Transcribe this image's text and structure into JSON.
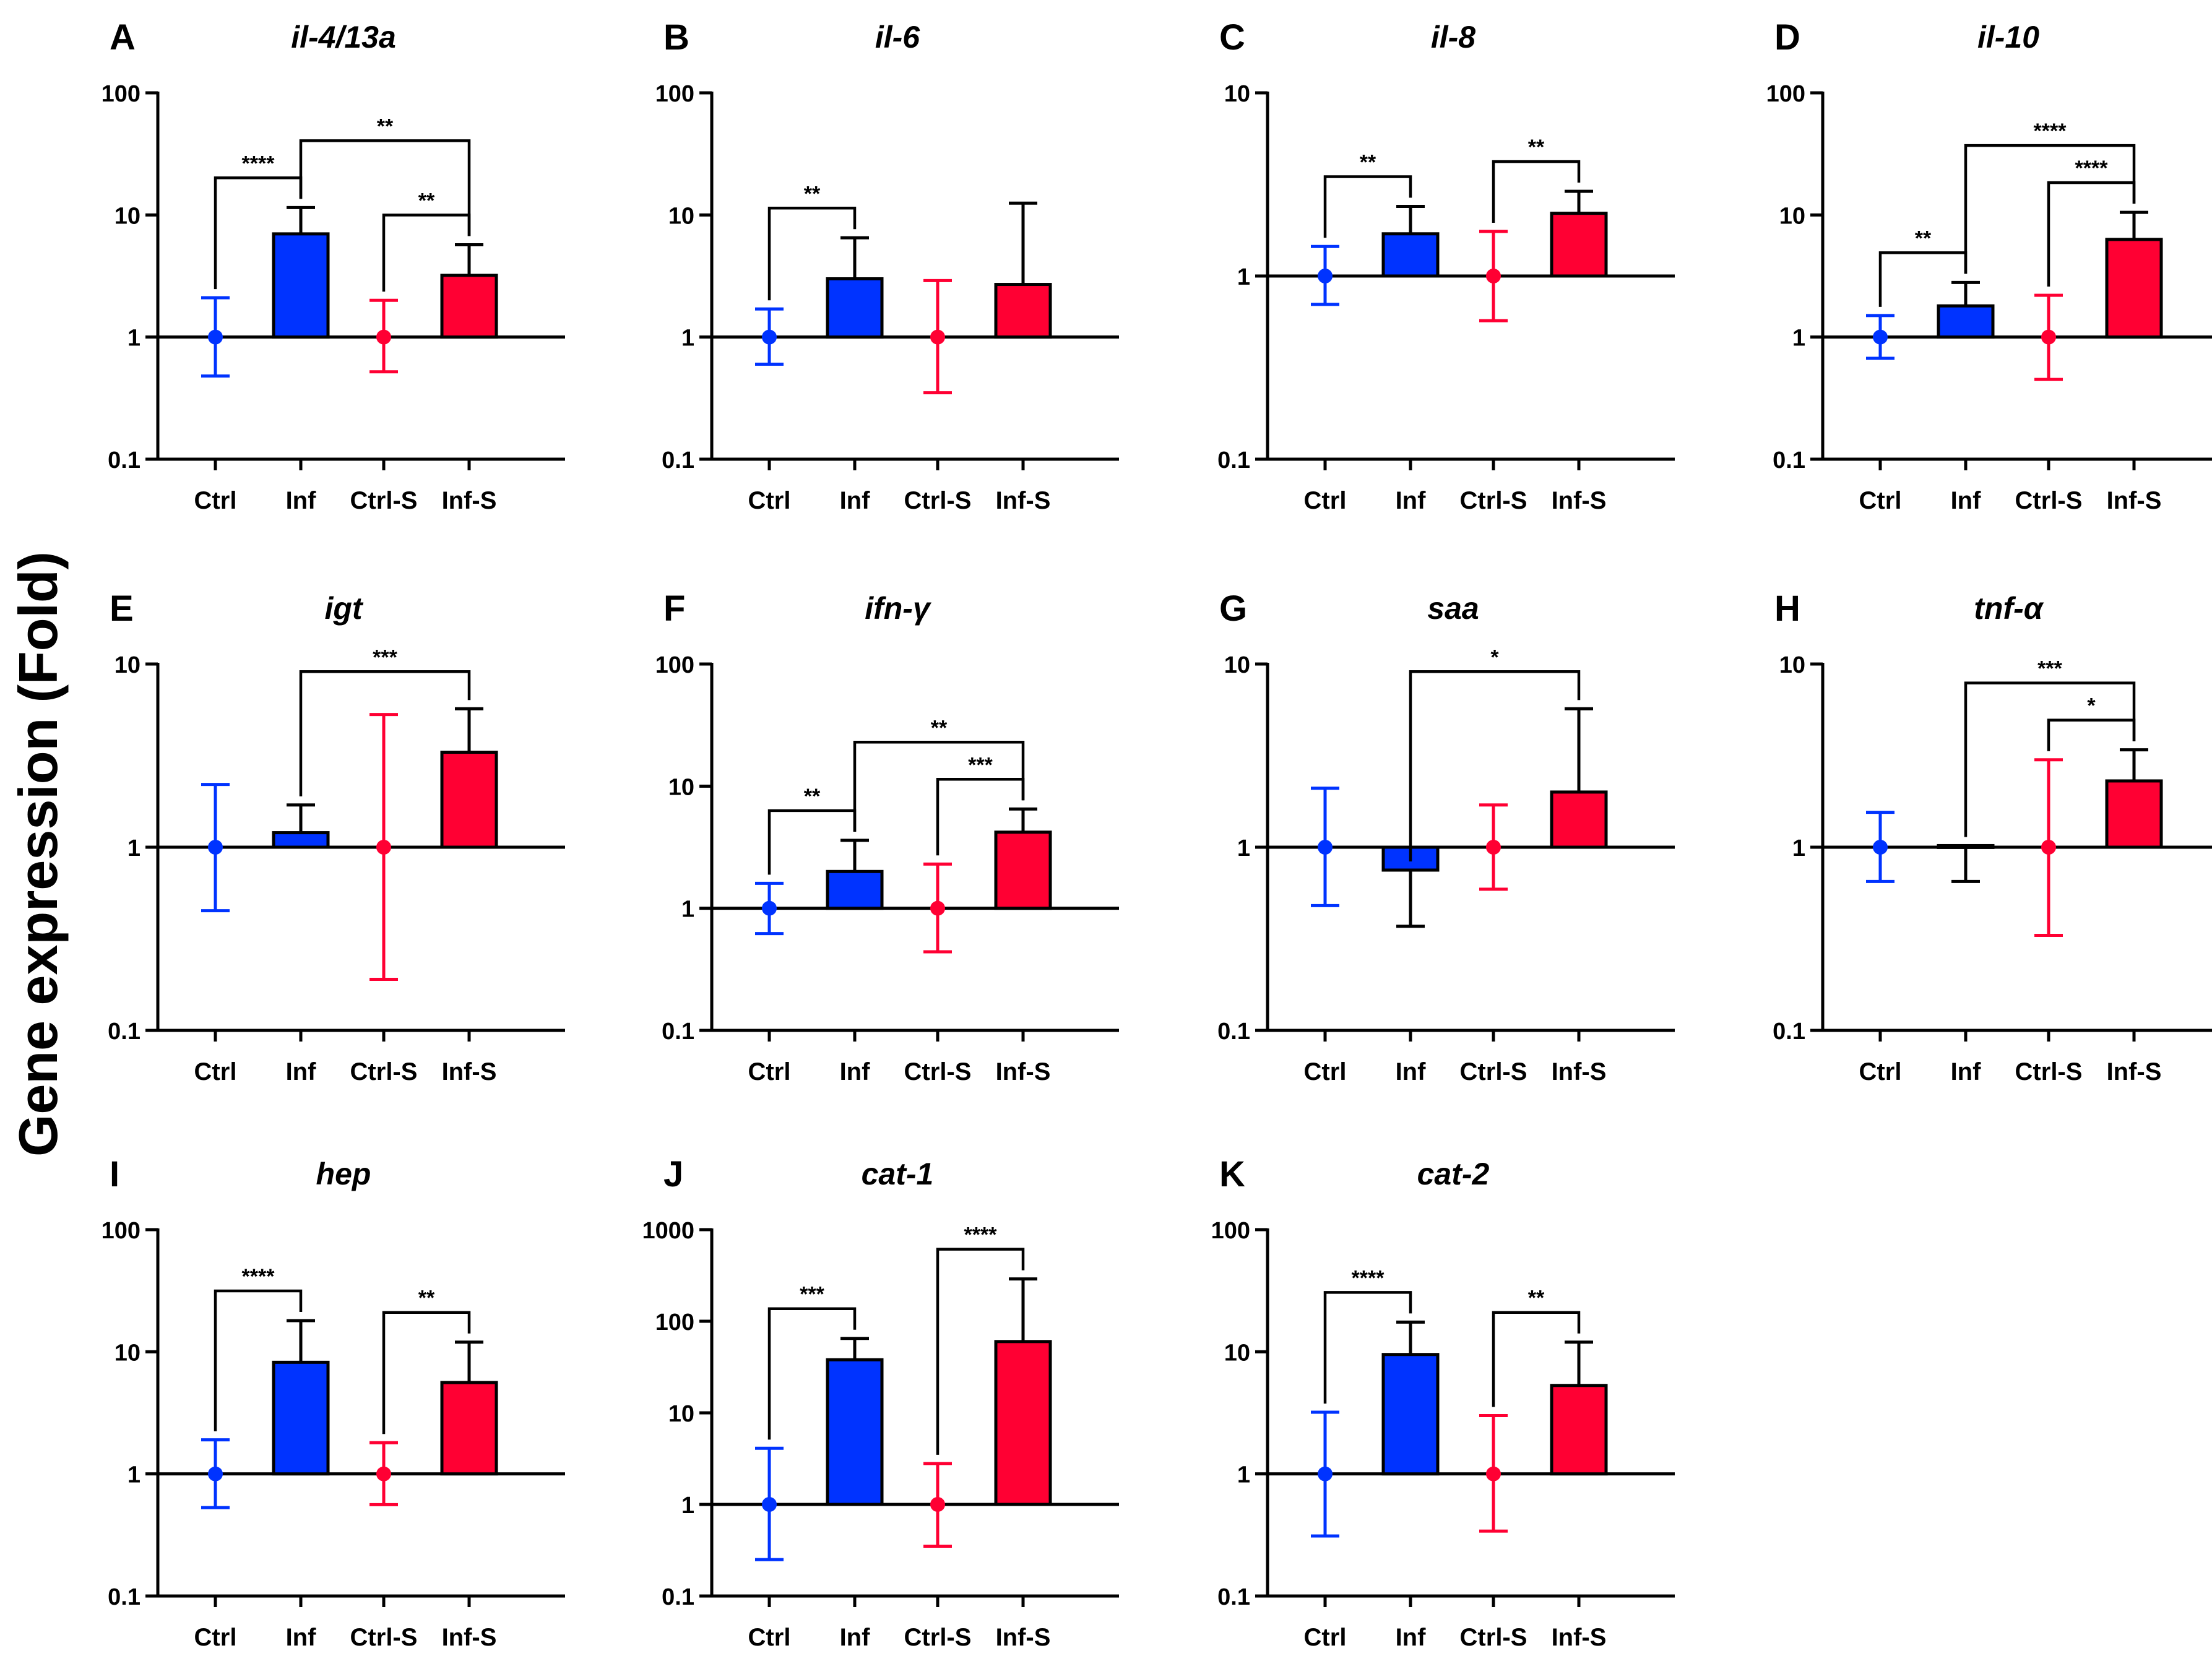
{
  "figure": {
    "ylabel": "Gene expression (Fold)",
    "categories": [
      "Ctrl",
      "Inf",
      "Ctrl-S",
      "Inf-S"
    ],
    "colors": {
      "infected": "#0033ff",
      "salmonella": "#ff0033",
      "axis": "#000000"
    }
  },
  "chart_data": [
    {
      "panel": "A",
      "title": "il-4/13a",
      "type": "bar",
      "scale": "log",
      "ylim": [
        0.1,
        100
      ],
      "yticks": [
        "0.1",
        "1",
        "10",
        "100"
      ],
      "categories": [
        "Ctrl",
        "Inf",
        "Ctrl-S",
        "Inf-S"
      ],
      "values": [
        1,
        7,
        1,
        3.2
      ],
      "err_low": [
        0.48,
        null,
        0.52,
        null
      ],
      "err_high": [
        2.1,
        11.5,
        2.0,
        5.7
      ],
      "sig": [
        {
          "a": 0,
          "b": 1,
          "label": "****"
        },
        {
          "a": 2,
          "b": 3,
          "label": "**"
        },
        {
          "a": 1,
          "b": 3,
          "label": "**"
        }
      ]
    },
    {
      "panel": "B",
      "title": "il-6",
      "type": "bar",
      "scale": "log",
      "ylim": [
        0.1,
        100
      ],
      "yticks": [
        "0.1",
        "1",
        "10",
        "100"
      ],
      "categories": [
        "Ctrl",
        "Inf",
        "Ctrl-S",
        "Inf-S"
      ],
      "values": [
        1,
        3,
        1,
        2.7
      ],
      "err_low": [
        0.6,
        null,
        0.35,
        null
      ],
      "err_high": [
        1.7,
        6.5,
        2.9,
        12.5
      ],
      "sig": [
        {
          "a": 0,
          "b": 1,
          "label": "**"
        }
      ]
    },
    {
      "panel": "C",
      "title": "il-8",
      "type": "bar",
      "scale": "log",
      "ylim": [
        0.1,
        10
      ],
      "yticks": [
        "0.1",
        "1",
        "10"
      ],
      "categories": [
        "Ctrl",
        "Inf",
        "Ctrl-S",
        "Inf-S"
      ],
      "values": [
        1,
        1.7,
        1,
        2.2
      ],
      "err_low": [
        0.7,
        null,
        0.57,
        null
      ],
      "err_high": [
        1.45,
        2.4,
        1.75,
        2.9
      ],
      "sig": [
        {
          "a": 0,
          "b": 1,
          "label": "**"
        },
        {
          "a": 2,
          "b": 3,
          "label": "**"
        }
      ]
    },
    {
      "panel": "D",
      "title": "il-10",
      "type": "bar",
      "scale": "log",
      "ylim": [
        0.1,
        100
      ],
      "yticks": [
        "0.1",
        "1",
        "10",
        "100"
      ],
      "categories": [
        "Ctrl",
        "Inf",
        "Ctrl-S",
        "Inf-S"
      ],
      "values": [
        1,
        1.8,
        1,
        6.3
      ],
      "err_low": [
        0.67,
        null,
        0.45,
        null
      ],
      "err_high": [
        1.5,
        2.8,
        2.2,
        10.5
      ],
      "sig": [
        {
          "a": 0,
          "b": 1,
          "label": "**"
        },
        {
          "a": 2,
          "b": 3,
          "label": "****"
        },
        {
          "a": 1,
          "b": 3,
          "label": "****"
        }
      ]
    },
    {
      "panel": "E",
      "title": "igt",
      "type": "bar",
      "scale": "log",
      "ylim": [
        0.1,
        10
      ],
      "yticks": [
        "0.1",
        "1",
        "10"
      ],
      "categories": [
        "Ctrl",
        "Inf",
        "Ctrl-S",
        "Inf-S"
      ],
      "values": [
        1,
        1.2,
        1,
        3.3
      ],
      "err_low": [
        0.45,
        null,
        0.19,
        null
      ],
      "err_high": [
        2.2,
        1.7,
        5.3,
        5.7
      ],
      "sig": [
        {
          "a": 1,
          "b": 3,
          "label": "***"
        }
      ]
    },
    {
      "panel": "F",
      "title": "ifn-γ",
      "type": "bar",
      "scale": "log",
      "ylim": [
        0.1,
        100
      ],
      "yticks": [
        "0.1",
        "1",
        "10",
        "100"
      ],
      "categories": [
        "Ctrl",
        "Inf",
        "Ctrl-S",
        "Inf-S"
      ],
      "values": [
        1,
        2,
        1,
        4.2
      ],
      "err_low": [
        0.62,
        null,
        0.44,
        null
      ],
      "err_high": [
        1.6,
        3.6,
        2.3,
        6.5
      ],
      "sig": [
        {
          "a": 0,
          "b": 1,
          "label": "**"
        },
        {
          "a": 2,
          "b": 3,
          "label": "***"
        },
        {
          "a": 1,
          "b": 3,
          "label": "**"
        }
      ]
    },
    {
      "panel": "G",
      "title": "saa",
      "type": "bar",
      "scale": "log",
      "ylim": [
        0.1,
        10
      ],
      "yticks": [
        "0.1",
        "1",
        "10"
      ],
      "categories": [
        "Ctrl",
        "Inf",
        "Ctrl-S",
        "Inf-S"
      ],
      "values": [
        1,
        0.75,
        1,
        2
      ],
      "err_low": [
        0.48,
        0.37,
        0.59,
        null
      ],
      "err_high": [
        2.1,
        null,
        1.7,
        5.7
      ],
      "sig": [
        {
          "a": 1,
          "b": 3,
          "label": "*"
        }
      ]
    },
    {
      "panel": "H",
      "title": "tnf-α",
      "type": "bar",
      "scale": "log",
      "ylim": [
        0.1,
        10
      ],
      "yticks": [
        "0.1",
        "1",
        "10"
      ],
      "categories": [
        "Ctrl",
        "Inf",
        "Ctrl-S",
        "Inf-S"
      ],
      "values": [
        1,
        1.02,
        1,
        2.3
      ],
      "err_low": [
        0.65,
        0.65,
        0.33,
        null
      ],
      "err_high": [
        1.55,
        null,
        3.0,
        3.4
      ],
      "sig": [
        {
          "a": 2,
          "b": 3,
          "label": "*"
        },
        {
          "a": 1,
          "b": 3,
          "label": "***"
        }
      ]
    },
    {
      "panel": "I",
      "title": "hep",
      "type": "bar",
      "scale": "log",
      "ylim": [
        0.1,
        100
      ],
      "yticks": [
        "0.1",
        "1",
        "10",
        "100"
      ],
      "categories": [
        "Ctrl",
        "Inf",
        "Ctrl-S",
        "Inf-S"
      ],
      "values": [
        1,
        8.2,
        1,
        5.6
      ],
      "err_low": [
        0.53,
        null,
        0.56,
        null
      ],
      "err_high": [
        1.9,
        18,
        1.8,
        12
      ],
      "sig": [
        {
          "a": 0,
          "b": 1,
          "label": "****"
        },
        {
          "a": 2,
          "b": 3,
          "label": "**"
        }
      ]
    },
    {
      "panel": "J",
      "title": "cat-1",
      "type": "bar",
      "scale": "log",
      "ylim": [
        0.1,
        1000
      ],
      "yticks": [
        "0.1",
        "1",
        "10",
        "100",
        "1000"
      ],
      "categories": [
        "Ctrl",
        "Inf",
        "Ctrl-S",
        "Inf-S"
      ],
      "values": [
        1,
        38,
        1,
        60
      ],
      "err_low": [
        0.25,
        null,
        0.35,
        null
      ],
      "err_high": [
        4.1,
        65,
        2.8,
        290
      ],
      "sig": [
        {
          "a": 0,
          "b": 1,
          "label": "***"
        },
        {
          "a": 2,
          "b": 3,
          "label": "****"
        }
      ]
    },
    {
      "panel": "K",
      "title": "cat-2",
      "type": "bar",
      "scale": "log",
      "ylim": [
        0.1,
        100
      ],
      "yticks": [
        "0.1",
        "1",
        "10",
        "100"
      ],
      "categories": [
        "Ctrl",
        "Inf",
        "Ctrl-S",
        "Inf-S"
      ],
      "values": [
        1,
        9.5,
        1,
        5.3
      ],
      "err_low": [
        0.31,
        null,
        0.34,
        null
      ],
      "err_high": [
        3.2,
        17.5,
        3.0,
        12
      ],
      "sig": [
        {
          "a": 0,
          "b": 1,
          "label": "****"
        },
        {
          "a": 2,
          "b": 3,
          "label": "**"
        }
      ]
    }
  ]
}
